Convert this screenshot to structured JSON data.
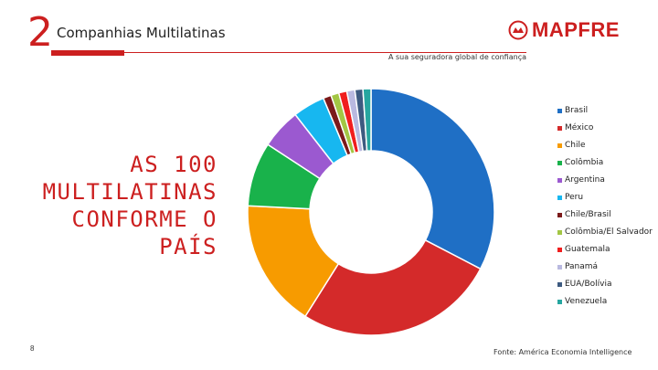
{
  "header": {
    "section_number": "2",
    "section_title": "Companhias Multilatinas",
    "tagline": "A sua seguradora global de confiança"
  },
  "logo": {
    "text": "MAPFRE",
    "icon": "mapfre-logo-icon",
    "brand_color": "#cc1f1f"
  },
  "headline": {
    "lines": [
      "AS 100",
      "MULTILATINAS",
      "CONFORME O",
      "PAÍS"
    ]
  },
  "chart_data": {
    "type": "pie",
    "donut": true,
    "categories": [
      "Brasil",
      "México",
      "Chile",
      "Colômbia",
      "Argentina",
      "Peru",
      "Chile/Brasil",
      "Colômbia/El Salvador",
      "Guatemala",
      "Panamá",
      "EUA/Bolívia",
      "Venezuela"
    ],
    "values": [
      31,
      25,
      16,
      8,
      5,
      4,
      1,
      1,
      1,
      1,
      1,
      1
    ],
    "colors": [
      "#1f6fc5",
      "#d42a2a",
      "#f79b00",
      "#19b24b",
      "#9b59d0",
      "#17b7f0",
      "#7b1a1a",
      "#a3c644",
      "#f01e1e",
      "#b9b9e0",
      "#3d5a80",
      "#26a6a0"
    ],
    "legend_position": "right"
  },
  "footer": {
    "page_number": "8",
    "source": "Fonte: América Economia Intelligence"
  }
}
